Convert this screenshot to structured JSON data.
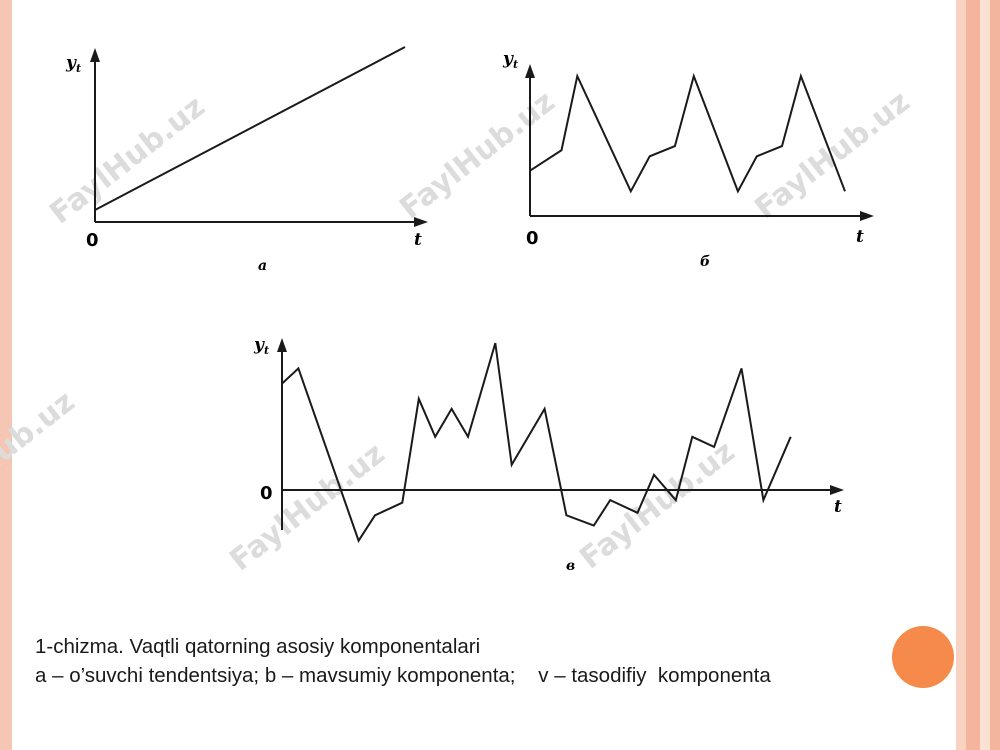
{
  "colors": {
    "frame_left": "#f4c6b3",
    "frame_right_bands": [
      "#f9d3c2",
      "#f3b59c",
      "#fbe1d4",
      "#f3b59c"
    ],
    "accent_dot": "#f58a4b",
    "line": "#1a1a1a",
    "watermark": "#dcdcdc"
  },
  "watermark": "FaylHub.uz",
  "panels": [
    {
      "id": "a",
      "label": "а",
      "y_label": "y",
      "y_sub": "t",
      "x_label": "t",
      "origin_label": "0",
      "series": [
        [
          0,
          1.0
        ],
        [
          1,
          4.0
        ]
      ],
      "description_type": "trend"
    },
    {
      "id": "b",
      "label": "б",
      "y_label": "y",
      "y_sub": "t",
      "x_label": "t",
      "origin_label": "0",
      "series": [
        [
          0,
          2.2
        ],
        [
          0.1,
          3.2
        ],
        [
          0.15,
          6.8
        ],
        [
          0.32,
          1.2
        ],
        [
          0.38,
          2.9
        ],
        [
          0.46,
          3.4
        ],
        [
          0.52,
          6.8
        ],
        [
          0.66,
          1.2
        ],
        [
          0.72,
          2.9
        ],
        [
          0.8,
          3.4
        ],
        [
          0.86,
          6.8
        ],
        [
          1.0,
          1.2
        ]
      ],
      "description_type": "seasonal"
    },
    {
      "id": "v",
      "label": "в",
      "y_label": "y",
      "y_sub": "t",
      "x_label": "t",
      "origin_label": "0",
      "series": [
        [
          0,
          4.2
        ],
        [
          0.03,
          4.8
        ],
        [
          0.14,
          -2.0
        ],
        [
          0.17,
          -1.0
        ],
        [
          0.22,
          -0.5
        ],
        [
          0.25,
          3.6
        ],
        [
          0.28,
          2.1
        ],
        [
          0.31,
          3.2
        ],
        [
          0.34,
          2.1
        ],
        [
          0.39,
          5.8
        ],
        [
          0.42,
          1.0
        ],
        [
          0.48,
          3.2
        ],
        [
          0.52,
          -1.0
        ],
        [
          0.57,
          -1.4
        ],
        [
          0.6,
          -0.4
        ],
        [
          0.65,
          -0.9
        ],
        [
          0.68,
          0.6
        ],
        [
          0.72,
          -0.4
        ],
        [
          0.75,
          2.1
        ],
        [
          0.79,
          1.7
        ],
        [
          0.84,
          4.8
        ],
        [
          0.88,
          -0.4
        ],
        [
          0.93,
          2.1
        ]
      ],
      "description_type": "random"
    }
  ],
  "caption": {
    "line1": "1-chizma. Vaqtli qatorning asosiy komponentalari",
    "line2": "a – o’suvchi tendentsiya; b – mavsumiy komponenta;    v – tasodifiy  komponenta"
  }
}
